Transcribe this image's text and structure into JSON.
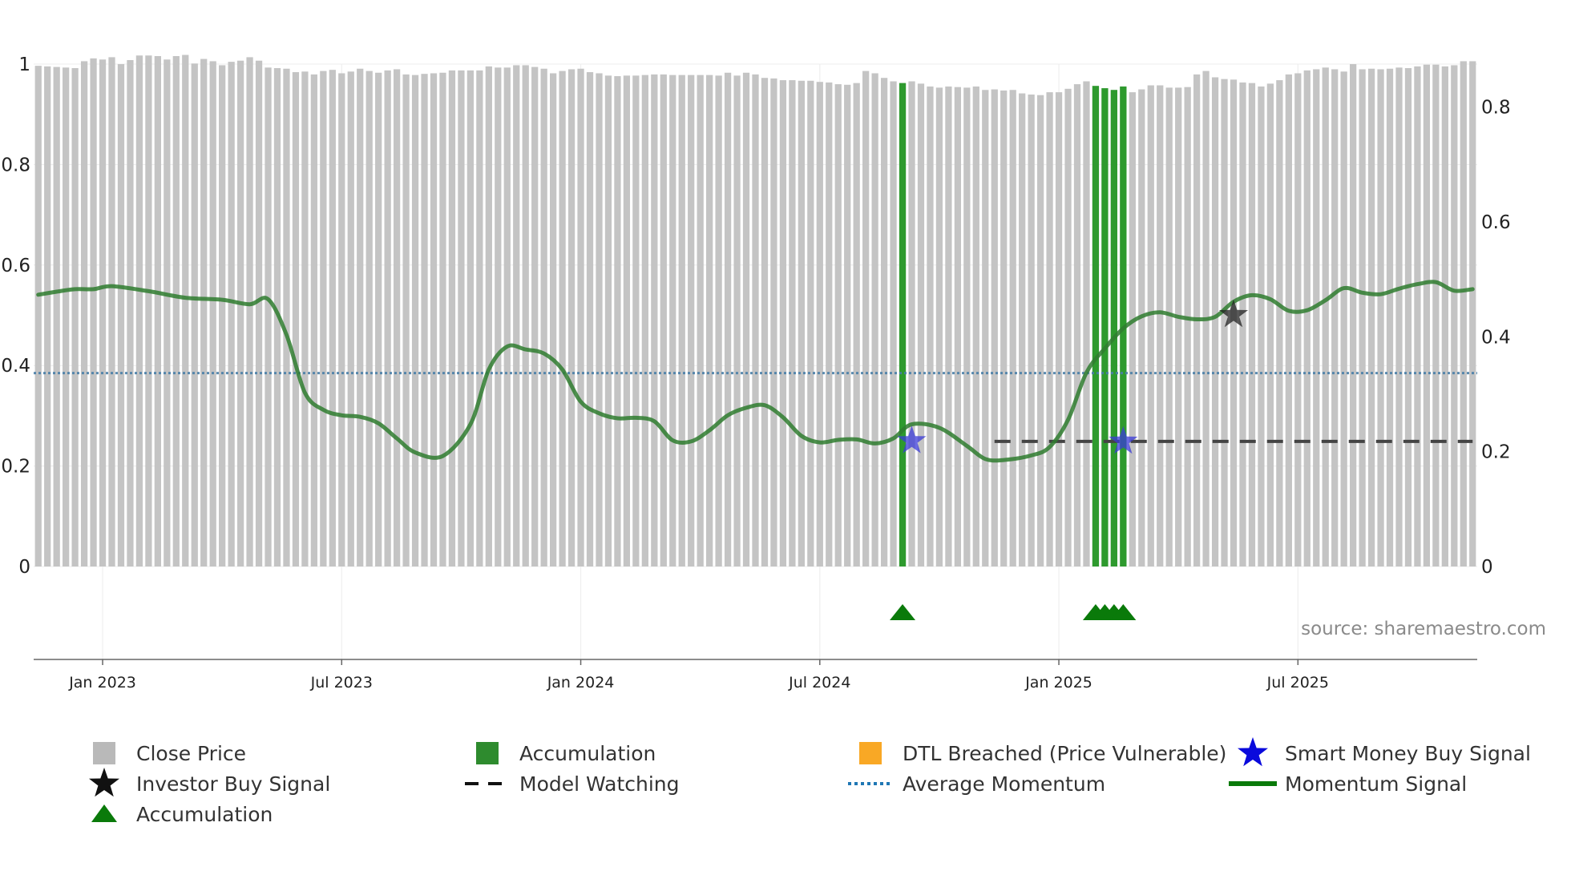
{
  "chart_data": {
    "type": "bar",
    "title": "",
    "xlabel": "",
    "ylabel": "",
    "left_axis": {
      "ylim": [
        0,
        1
      ],
      "ticks": [
        "0",
        "0.2",
        "0.4",
        "0.6",
        "0.8",
        "1"
      ],
      "tick_values": [
        0,
        0.2,
        0.4,
        0.6,
        0.8,
        1
      ]
    },
    "right_axis": {
      "ylim": [
        0,
        0.875
      ],
      "ticks": [
        "0",
        "0.2",
        "0.4",
        "0.6",
        "0.8"
      ],
      "tick_values": [
        0,
        0.2,
        0.4,
        0.6,
        0.8
      ]
    },
    "x_ticks": [
      "Jan 2023",
      "Jul 2023",
      "Jan 2024",
      "Jul 2024",
      "Jan 2025",
      "Jul 2025"
    ],
    "x_tick_positions": [
      7.5,
      33.5,
      59.5,
      85.5,
      111.5,
      137.5
    ],
    "bar_count": 157,
    "close_price": [
      0.872,
      0.871,
      0.87,
      0.869,
      0.868,
      0.88,
      0.885,
      0.883,
      0.887,
      0.875,
      0.882,
      0.89,
      0.89,
      0.889,
      0.883,
      0.889,
      0.891,
      0.876,
      0.884,
      0.88,
      0.873,
      0.879,
      0.881,
      0.887,
      0.881,
      0.869,
      0.868,
      0.867,
      0.861,
      0.862,
      0.857,
      0.863,
      0.865,
      0.859,
      0.862,
      0.867,
      0.863,
      0.86,
      0.864,
      0.866,
      0.857,
      0.856,
      0.858,
      0.859,
      0.86,
      0.864,
      0.864,
      0.864,
      0.864,
      0.871,
      0.869,
      0.869,
      0.873,
      0.873,
      0.87,
      0.867,
      0.859,
      0.863,
      0.866,
      0.867,
      0.861,
      0.859,
      0.855,
      0.854,
      0.855,
      0.855,
      0.856,
      0.857,
      0.857,
      0.856,
      0.856,
      0.856,
      0.856,
      0.856,
      0.855,
      0.86,
      0.855,
      0.86,
      0.857,
      0.851,
      0.85,
      0.847,
      0.847,
      0.846,
      0.846,
      0.844,
      0.843,
      0.84,
      0.839,
      0.842,
      0.863,
      0.859,
      0.851,
      0.845,
      0.842,
      0.845,
      0.841,
      0.836,
      0.834,
      0.836,
      0.835,
      0.834,
      0.836,
      0.83,
      0.831,
      0.829,
      0.83,
      0.824,
      0.822,
      0.821,
      0.826,
      0.826,
      0.832,
      0.84,
      0.845,
      0.837,
      0.833,
      0.83,
      0.836,
      0.826,
      0.831,
      0.838,
      0.838,
      0.834,
      0.834,
      0.835,
      0.857,
      0.863,
      0.852,
      0.849,
      0.848,
      0.843,
      0.842,
      0.836,
      0.841,
      0.847,
      0.857,
      0.859,
      0.864,
      0.866,
      0.869,
      0.866,
      0.862,
      0.875,
      0.866,
      0.867,
      0.866,
      0.867,
      0.869,
      0.868,
      0.871,
      0.874,
      0.874,
      0.871,
      0.873,
      0.88,
      0.88
    ],
    "accumulation_bar_indices": [
      94,
      115,
      116,
      117,
      118
    ],
    "accumulation_markers": [
      94,
      115,
      116,
      117,
      118
    ],
    "momentum_signal": {
      "x": [
        0,
        2,
        4,
        6,
        8,
        12,
        16,
        20,
        23,
        25,
        27,
        29,
        31,
        33,
        35,
        37,
        39,
        41,
        44,
        47,
        49,
        51,
        53,
        55,
        57,
        59,
        61,
        63,
        65,
        67,
        69,
        71,
        73,
        75,
        77,
        79,
        81,
        83,
        85,
        87,
        89,
        91,
        93,
        95,
        98,
        101,
        103,
        105,
        108,
        110,
        112,
        114,
        116,
        118,
        120,
        122,
        124,
        126,
        128,
        130,
        132,
        134,
        136,
        138,
        140,
        142,
        144,
        146,
        148,
        150,
        152,
        154,
        156
      ],
      "y": [
        0.541,
        0.547,
        0.552,
        0.552,
        0.558,
        0.548,
        0.535,
        0.531,
        0.522,
        0.532,
        0.461,
        0.346,
        0.312,
        0.301,
        0.298,
        0.285,
        0.255,
        0.227,
        0.22,
        0.283,
        0.392,
        0.438,
        0.432,
        0.424,
        0.392,
        0.328,
        0.305,
        0.295,
        0.296,
        0.289,
        0.251,
        0.249,
        0.271,
        0.301,
        0.316,
        0.321,
        0.297,
        0.26,
        0.247,
        0.252,
        0.253,
        0.245,
        0.255,
        0.283,
        0.276,
        0.24,
        0.214,
        0.212,
        0.221,
        0.238,
        0.292,
        0.386,
        0.434,
        0.474,
        0.498,
        0.506,
        0.497,
        0.492,
        0.497,
        0.527,
        0.54,
        0.532,
        0.509,
        0.51,
        0.53,
        0.554,
        0.545,
        0.542,
        0.553,
        0.562,
        0.566,
        0.549,
        0.552
      ]
    },
    "average_momentum": 0.385,
    "model_watching": {
      "x_start": 104,
      "x_end": 156,
      "y": 0.249
    },
    "smart_money_buy_signals": [
      {
        "x": 95,
        "y": 0.25
      },
      {
        "x": 118,
        "y": 0.249
      }
    ],
    "investor_buy_signals": [
      {
        "x": 130,
        "y": 0.501
      }
    ],
    "source": "source: sharemaestro.com",
    "legend": [
      {
        "label": "Close Price",
        "symbol": "square",
        "color": "#b9b9b9"
      },
      {
        "label": "Accumulation",
        "symbol": "square",
        "color": "#2e8b2e"
      },
      {
        "label": "DTL Breached (Price Vulnerable)",
        "symbol": "square",
        "color": "#f9a825"
      },
      {
        "label": "Smart Money Buy Signal",
        "symbol": "star",
        "color": "#0a0adc"
      },
      {
        "label": "Investor Buy Signal",
        "symbol": "star",
        "color": "#111111"
      },
      {
        "label": "Model Watching",
        "symbol": "dash",
        "color": "#111111"
      },
      {
        "label": "Average Momentum",
        "symbol": "dot",
        "color": "#1f77b4"
      },
      {
        "label": "Momentum Signal",
        "symbol": "line",
        "color": "#0a7a0a"
      },
      {
        "label": "Accumulation",
        "symbol": "triangle",
        "color": "#0a7a0a"
      }
    ]
  }
}
